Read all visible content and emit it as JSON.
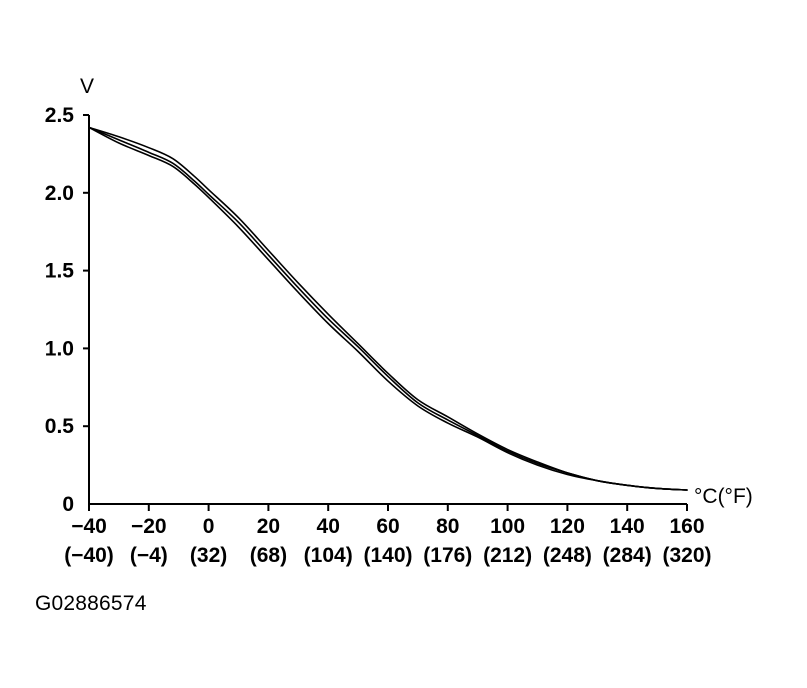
{
  "figure_id": "G02886574",
  "chart_data": {
    "type": "line",
    "title": "",
    "ylabel": "V",
    "xlabel": "°C(°F)",
    "xlim": [
      -40,
      160
    ],
    "ylim": [
      0,
      2.5
    ],
    "grid": false,
    "x_ticks": [
      -40,
      -20,
      0,
      20,
      40,
      60,
      80,
      100,
      120,
      140,
      160
    ],
    "x_tick_labels": [
      "−40",
      "−20",
      "0",
      "20",
      "40",
      "60",
      "80",
      "100",
      "120",
      "140",
      "160"
    ],
    "x_tick_labels_f": [
      "(−40)",
      "(−4)",
      "(32)",
      "(68)",
      "(104)",
      "(140)",
      "(176)",
      "(212)",
      "(248)",
      "(284)",
      "(320)"
    ],
    "y_ticks": [
      0,
      0.5,
      1.0,
      1.5,
      2.0,
      2.5
    ],
    "y_tick_labels": [
      "0",
      "0.5",
      "1.0",
      "1.5",
      "2.0",
      "2.5"
    ],
    "series": [
      {
        "x": [
          -40,
          -30,
          -20,
          -12,
          -5,
          0,
          10,
          20,
          30,
          40,
          50,
          60,
          70,
          80,
          90,
          100,
          110,
          120,
          130,
          140,
          150,
          160
        ],
        "y": [
          2.42,
          2.36,
          2.29,
          2.22,
          2.11,
          2.02,
          1.84,
          1.63,
          1.42,
          1.22,
          1.03,
          0.84,
          0.67,
          0.56,
          0.45,
          0.35,
          0.27,
          0.2,
          0.15,
          0.12,
          0.1,
          0.09
        ]
      },
      {
        "x": [
          -40,
          -30,
          -20,
          -12,
          -5,
          0,
          10,
          20,
          30,
          40,
          50,
          60,
          70,
          80,
          90,
          100,
          110,
          120,
          130,
          140,
          150,
          160
        ],
        "y": [
          2.42,
          2.34,
          2.26,
          2.19,
          2.08,
          1.99,
          1.81,
          1.6,
          1.39,
          1.19,
          1.01,
          0.82,
          0.65,
          0.54,
          0.44,
          0.34,
          0.26,
          0.2,
          0.15,
          0.12,
          0.1,
          0.09
        ]
      },
      {
        "x": [
          -40,
          -30,
          -20,
          -12,
          -5,
          0,
          10,
          20,
          30,
          40,
          50,
          60,
          70,
          80,
          90,
          100,
          110,
          120,
          130,
          140,
          150,
          160
        ],
        "y": [
          2.42,
          2.32,
          2.24,
          2.17,
          2.06,
          1.97,
          1.78,
          1.57,
          1.36,
          1.16,
          0.98,
          0.79,
          0.63,
          0.52,
          0.43,
          0.33,
          0.25,
          0.19,
          0.15,
          0.12,
          0.1,
          0.09
        ]
      }
    ]
  }
}
